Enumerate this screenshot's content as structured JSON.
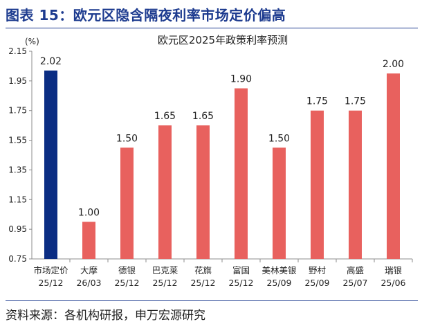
{
  "figure": {
    "title": "图表 15：欧元区隐含隔夜利率市场定价偏高",
    "source": "资料来源：各机构研报，申万宏源研究"
  },
  "colors": {
    "title": "#1d3b8f",
    "highlight_bar": "#0b2d83",
    "bar": "#e8615e",
    "axis": "#8c8c8c"
  },
  "chart_data": {
    "type": "bar",
    "title": "欧元区2025年政策利率预测",
    "unit_label": "(%)",
    "categories": [
      [
        "市场定价",
        "25/12"
      ],
      [
        "大摩",
        "26/03"
      ],
      [
        "德银",
        "25/12"
      ],
      [
        "巴克莱",
        "25/12"
      ],
      [
        "花旗",
        "25/12"
      ],
      [
        "富国",
        "25/12"
      ],
      [
        "美林美银",
        "25/09"
      ],
      [
        "野村",
        "25/09"
      ],
      [
        "高盛",
        "25/07"
      ],
      [
        "瑞银",
        "25/06"
      ]
    ],
    "values": [
      2.02,
      1.0,
      1.5,
      1.65,
      1.65,
      1.9,
      1.5,
      1.75,
      1.75,
      2.0
    ],
    "value_labels": [
      "2.02",
      "1.00",
      "1.50",
      "1.65",
      "1.65",
      "1.90",
      "1.50",
      "1.75",
      "1.75",
      "2.00"
    ],
    "ylim": [
      0.75,
      2.15
    ],
    "yticks": [
      "0.75",
      "0.95",
      "1.15",
      "1.35",
      "1.55",
      "1.75",
      "1.95",
      "2.15"
    ],
    "highlight_index": 0,
    "grid": false,
    "legend": "none"
  }
}
